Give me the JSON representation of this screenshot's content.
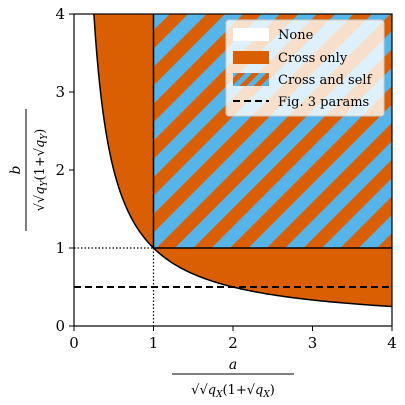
{
  "chart_data": {
    "type": "area",
    "xlim": [
      0,
      4
    ],
    "ylim": [
      0,
      4
    ],
    "x_ticks": [
      "0",
      "1",
      "2",
      "3",
      "4"
    ],
    "y_ticks": [
      "0",
      "1",
      "2",
      "3",
      "4"
    ],
    "xlabel": {
      "numerator": "a",
      "denominator_prefix": "√",
      "q1": "q",
      "q1_sub": "X",
      "paren_open": "(1+",
      "q2": "q",
      "q2_sub": "X",
      "paren_close": ")"
    },
    "ylabel": {
      "numerator": "b",
      "denominator_prefix": "√",
      "q1": "q",
      "q1_sub": "Y",
      "paren_open": "(1+",
      "q2": "q",
      "q2_sub": "Y",
      "paren_close": ")"
    },
    "regions": [
      {
        "name": "None",
        "color": "#ffffff"
      },
      {
        "name": "Cross only",
        "color": "#d95f02"
      },
      {
        "name": "Cross and self",
        "color": "#d95f02",
        "stripe_color": "#56b4e9"
      }
    ],
    "boundary_curve": "y = 1/x",
    "cross_and_self_region": {
      "x_min": 1,
      "y_min": 1
    },
    "dotted_reference": {
      "x": 1,
      "y": 1
    },
    "fig3_params_line": {
      "name": "Fig. 3 params",
      "y": 0.5,
      "style": "dashed"
    },
    "legend_placement": "top-right",
    "grid": false,
    "colors": {
      "orange": "#d95f02",
      "blue": "#56b4e9"
    }
  }
}
